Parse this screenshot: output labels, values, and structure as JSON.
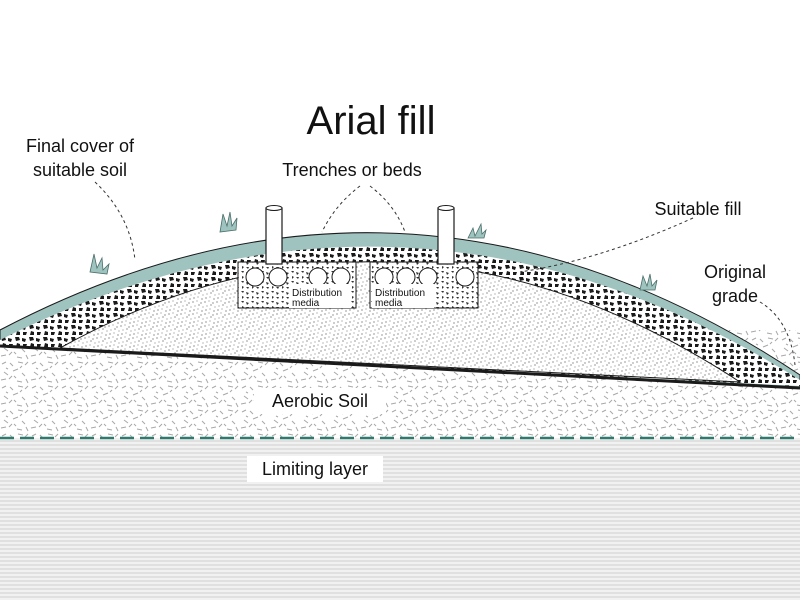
{
  "title": "Arial fill",
  "labels": {
    "final_cover_line1": "Final cover of",
    "final_cover_line2": "suitable soil",
    "trenches": "Trenches or beds",
    "suitable_fill": "Suitable fill",
    "original_grade_line1": "Original",
    "original_grade_line2": "grade",
    "aerobic_soil": "Aerobic Soil",
    "limiting_layer": "Limiting layer",
    "distribution_media_line1": "Distribution",
    "distribution_media_line2": "media"
  },
  "colors": {
    "cover": "#9fc3bf",
    "limiting_line": "#2f7a6e",
    "outline": "#1a1a1a"
  }
}
